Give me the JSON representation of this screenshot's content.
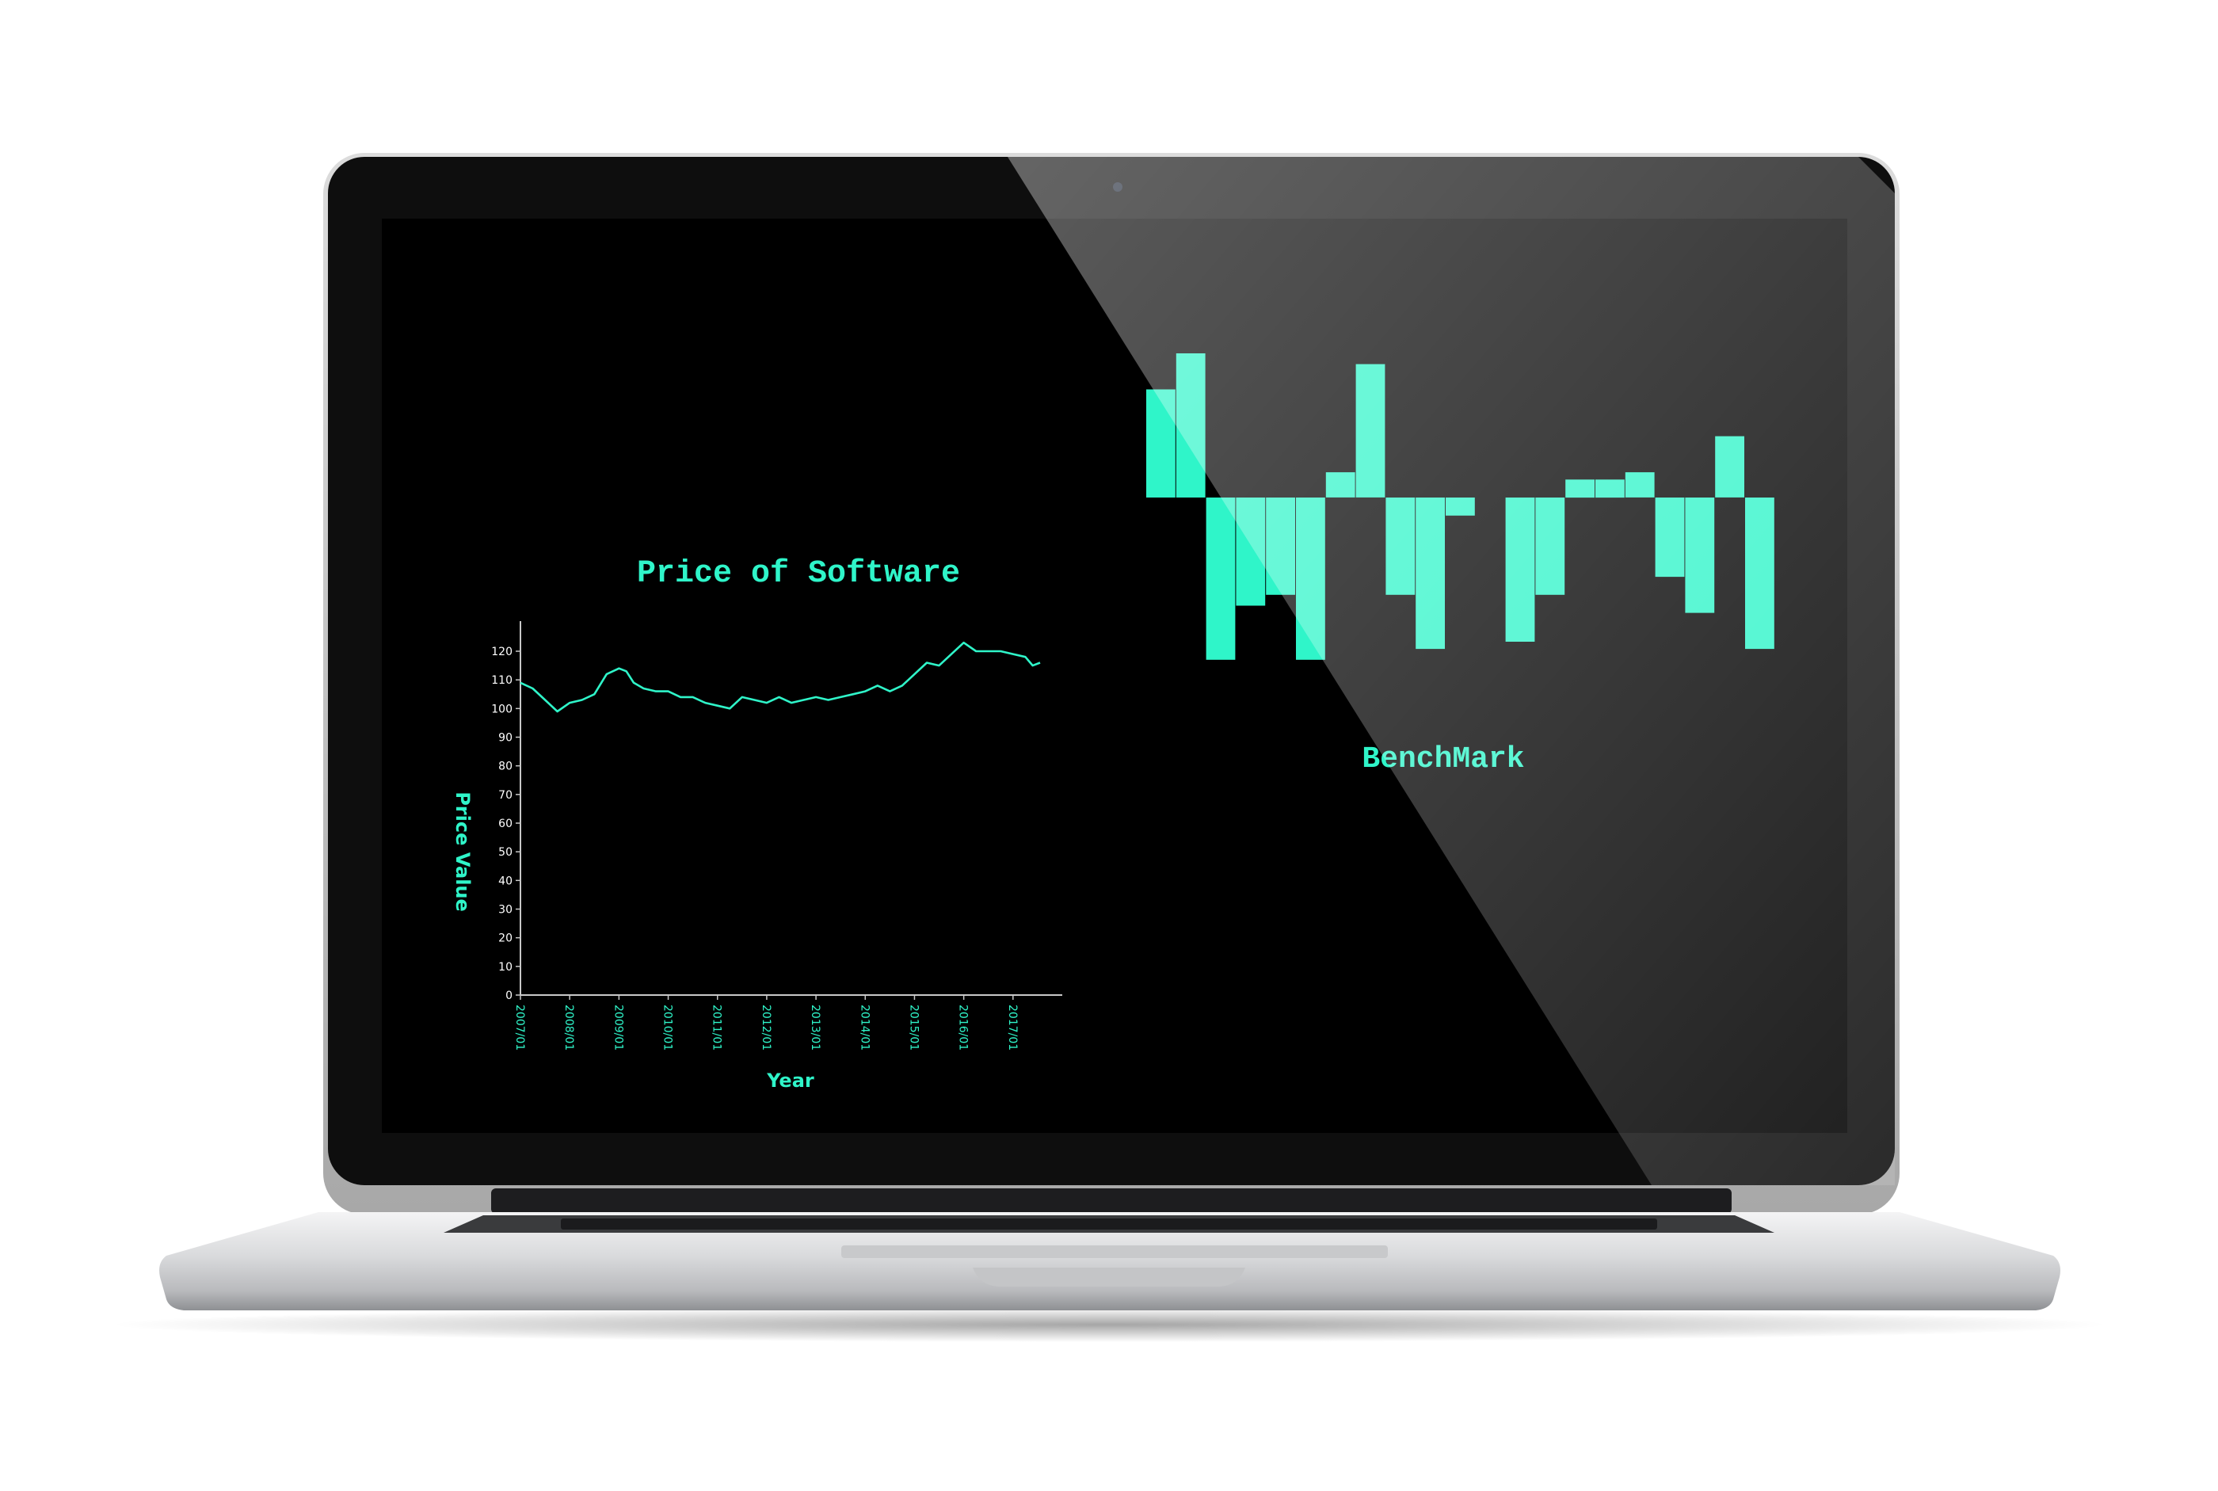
{
  "colors": {
    "accent": "#2ff5c9",
    "screen": "#000000",
    "bezel": "#101010",
    "axis": "#c8c8c8",
    "tick_text": "#ffffff"
  },
  "chart_data": [
    {
      "type": "line",
      "title": "Price of Software",
      "xlabel": "Year",
      "ylabel": "Price Value",
      "ylim": [
        0,
        120
      ],
      "yticks": [
        0,
        10,
        20,
        30,
        40,
        50,
        60,
        70,
        80,
        90,
        100,
        110,
        120
      ],
      "xlim": [
        2007.0,
        2018.0
      ],
      "xticks": [
        {
          "label": "2007/01",
          "value": 2007.0
        },
        {
          "label": "2008/01",
          "value": 2008.0
        },
        {
          "label": "2009/01",
          "value": 2009.0
        },
        {
          "label": "2010/01",
          "value": 2010.0
        },
        {
          "label": "2011/01",
          "value": 2011.0
        },
        {
          "label": "2012/01",
          "value": 2012.0
        },
        {
          "label": "2013/01",
          "value": 2013.0
        },
        {
          "label": "2014/01",
          "value": 2014.0
        },
        {
          "label": "2015/01",
          "value": 2015.0
        },
        {
          "label": "2016/01",
          "value": 2016.0
        },
        {
          "label": "2017/01",
          "value": 2017.0
        }
      ],
      "series": [
        {
          "x": [
            2007.0,
            2007.25,
            2007.5,
            2007.75,
            2008.0,
            2008.25,
            2008.5,
            2008.75,
            2009.0,
            2009.15,
            2009.3,
            2009.5,
            2009.75,
            2010.0,
            2010.25,
            2010.5,
            2010.75,
            2011.0,
            2011.25,
            2011.5,
            2011.75,
            2012.0,
            2012.25,
            2012.5,
            2012.75,
            2013.0,
            2013.25,
            2013.5,
            2013.75,
            2014.0,
            2014.25,
            2014.5,
            2014.75,
            2015.0,
            2015.25,
            2015.5,
            2015.75,
            2016.0,
            2016.25,
            2016.5,
            2016.75,
            2017.0,
            2017.25,
            2017.4,
            2017.55
          ],
          "values": [
            109,
            107,
            103,
            99,
            102,
            103,
            105,
            112,
            114,
            113,
            109,
            107,
            106,
            106,
            104,
            104,
            102,
            101,
            100,
            104,
            103,
            102,
            104,
            102,
            103,
            104,
            103,
            104,
            105,
            106,
            108,
            106,
            108,
            112,
            116,
            115,
            119,
            123,
            120,
            120,
            120,
            119,
            118,
            115,
            116
          ]
        }
      ]
    },
    {
      "type": "bar",
      "title": "BenchMark",
      "baseline": 0,
      "values": [
        30,
        40,
        -45,
        -30,
        -27,
        -45,
        7,
        37,
        -27,
        -42,
        -5,
        0,
        -40,
        -27,
        5,
        5,
        7,
        -22,
        -32,
        17,
        -42
      ]
    }
  ]
}
